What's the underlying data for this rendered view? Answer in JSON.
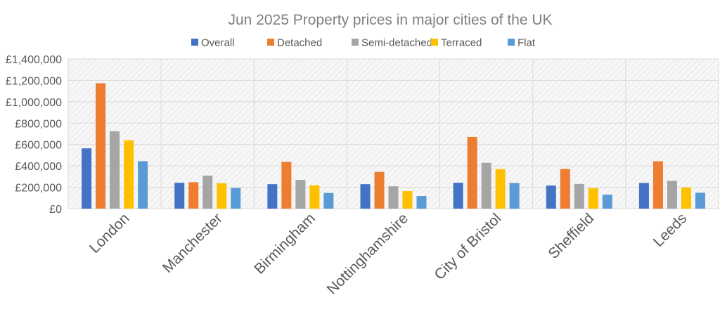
{
  "chart_data": {
    "type": "bar",
    "title": "Jun 2025 Property prices in major cities of the UK",
    "xlabel": "",
    "ylabel": "",
    "ylim": [
      0,
      1400000
    ],
    "yticks": [
      0,
      200000,
      400000,
      600000,
      800000,
      1000000,
      1200000,
      1400000
    ],
    "ytick_labels": [
      "£0",
      "£200,000",
      "£400,000",
      "£600,000",
      "£800,000",
      "£1,000,000",
      "£1,200,000",
      "£1,400,000"
    ],
    "grid": true,
    "legend_placement": "top",
    "categories": [
      "London",
      "Manchester",
      "Birmingham",
      "Nottinghamshire",
      "City of Bristol",
      "Sheffield",
      "Leeds"
    ],
    "series": [
      {
        "name": "Overall",
        "color": "#4472C4",
        "values": [
          564000,
          242000,
          229000,
          229000,
          242000,
          216000,
          240000
        ]
      },
      {
        "name": "Detached",
        "color": "#ED7D31",
        "values": [
          1173000,
          247000,
          438000,
          344000,
          671000,
          371000,
          444000
        ]
      },
      {
        "name": "Semi-detached",
        "color": "#A5A5A5",
        "values": [
          724000,
          309000,
          269000,
          209000,
          429000,
          231000,
          260000
        ]
      },
      {
        "name": "Terraced",
        "color": "#FFC000",
        "values": [
          640000,
          238000,
          218000,
          164000,
          369000,
          191000,
          198000
        ]
      },
      {
        "name": "Flat",
        "color": "#5B9BD5",
        "values": [
          444000,
          193000,
          147000,
          118000,
          240000,
          131000,
          149000
        ]
      }
    ]
  }
}
